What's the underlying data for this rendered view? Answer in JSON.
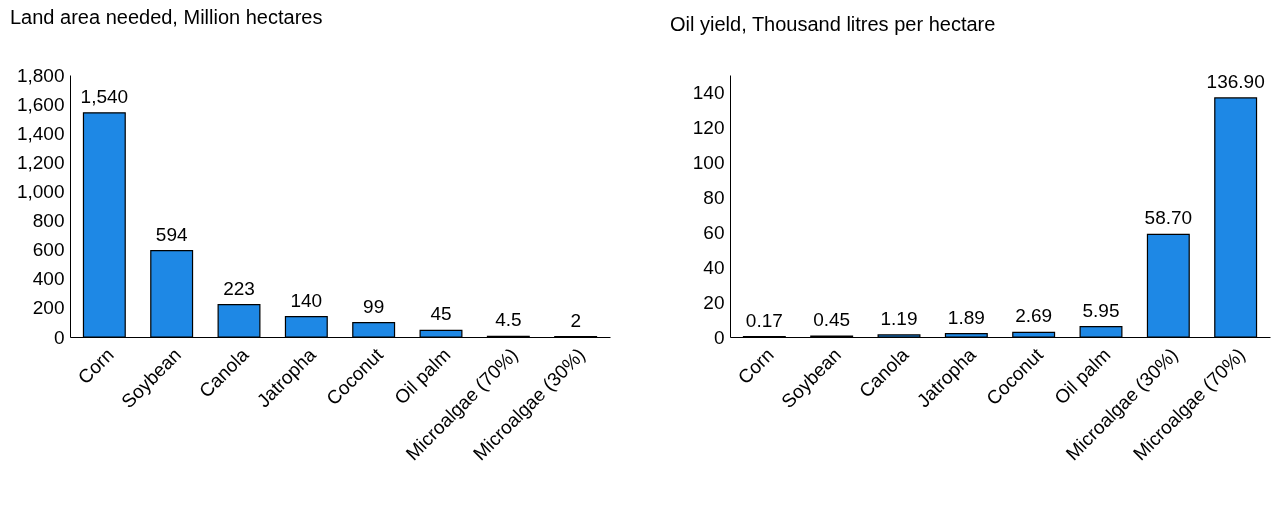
{
  "chart_data": [
    {
      "type": "bar",
      "title": "Land area needed, Million hectares",
      "categories": [
        "Corn",
        "Soybean",
        "Canola",
        "Jatropha",
        "Coconut",
        "Oil palm",
        "Microalgae (70%)",
        "Microalgae (30%)"
      ],
      "values": [
        1540,
        594,
        223,
        140,
        99,
        45,
        4.5,
        2
      ],
      "value_labels": [
        "1,540",
        "594",
        "223",
        "140",
        "99",
        "45",
        "4.5",
        "2"
      ],
      "color": "#1e88e5",
      "ylim": [
        0,
        1800
      ],
      "yticks": [
        0,
        200,
        400,
        600,
        800,
        {
          "value": 1000,
          "label": "1,000"
        },
        {
          "value": 1200,
          "label": "1,200"
        },
        {
          "value": 1400,
          "label": "1,400"
        },
        {
          "value": 1600,
          "label": "1,600"
        },
        {
          "value": 1800,
          "label": "1,800"
        }
      ]
    },
    {
      "type": "bar",
      "title": "Oil yield, Thousand litres per hectare",
      "categories": [
        "Corn",
        "Soybean",
        "Canola",
        "Jatropha",
        "Coconut",
        "Oil palm",
        "Microalgae (30%)",
        "Microalgae (70%)"
      ],
      "values": [
        0.17,
        0.45,
        1.19,
        1.89,
        2.69,
        5.95,
        58.7,
        136.9
      ],
      "value_labels": [
        "0.17",
        "0.45",
        "1.19",
        "1.89",
        "2.69",
        "5.95",
        "58.70",
        "136.90"
      ],
      "color": "#1e88e5",
      "ylim": [
        0,
        150
      ],
      "yticks": [
        0,
        20,
        40,
        60,
        80,
        100,
        120,
        140
      ]
    }
  ]
}
